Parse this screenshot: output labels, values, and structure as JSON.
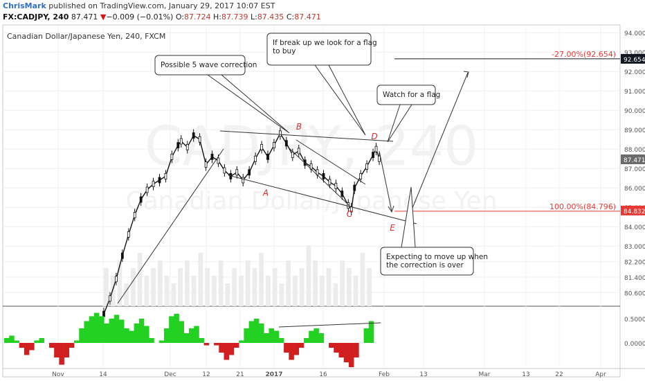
{
  "header": {
    "author": "ChrisMark",
    "published": "published on TradingView.com, January 29, 2017 10:07 EST",
    "symbol": "FX:CADJPY, 240",
    "last": "87.471",
    "change_arrow": "▼",
    "change": "−0.009 (−0.01%)",
    "o_label": "O:",
    "o": "87.724",
    "h_label": "H:",
    "h": "87.739",
    "l_label": "L:",
    "l": "87.435",
    "c_label": "C:",
    "c": "87.471"
  },
  "chart_data": {
    "type": "line",
    "title": "Canadian Dollar/Japanese Yen, 240, FXCM",
    "watermark_symbol": "CADJPY, 240",
    "watermark_name": "Canadian Dollar/Japanese Yen",
    "ylim": [
      79.9,
      94.4
    ],
    "yticks": [
      94,
      93,
      92,
      91,
      90,
      89,
      88,
      87,
      86,
      85,
      84,
      83,
      82.2,
      81.4,
      80.6
    ],
    "ytick_labels": [
      "94.000",
      "93.000",
      "92.000",
      "91.000",
      "90.000",
      "89.000",
      "88.000",
      "87.000",
      "86.000",
      "85.000",
      "84.000",
      "83.000",
      "82.200",
      "81.400",
      "80.600"
    ],
    "price_tags": [
      {
        "label": "92.654",
        "value": 92.654,
        "color": "#131722"
      },
      {
        "label": "87.471",
        "value": 87.471,
        "color": "#6b6b6b"
      },
      {
        "label": "84.832",
        "value": 84.832,
        "color": "#e53935"
      }
    ],
    "xtick_labels": [
      "Nov",
      "14",
      "Dec",
      "12",
      "21",
      "2017",
      "16",
      "Feb",
      "13",
      "Mar",
      "13",
      "22",
      "Apr"
    ],
    "price_series": [
      [
        0,
        79.5
      ],
      [
        4,
        80.3
      ],
      [
        8,
        81.3
      ],
      [
        12,
        82.5
      ],
      [
        16,
        83.6
      ],
      [
        20,
        84.6
      ],
      [
        24,
        85.4
      ],
      [
        28,
        85.9
      ],
      [
        32,
        86.2
      ],
      [
        36,
        86.4
      ],
      [
        40,
        86.6
      ],
      [
        44,
        87.6
      ],
      [
        48,
        88.2
      ],
      [
        50,
        88.4
      ],
      [
        54,
        88.1
      ],
      [
        58,
        88.7
      ],
      [
        62,
        88.5
      ],
      [
        66,
        87.2
      ],
      [
        70,
        87.6
      ],
      [
        74,
        87.4
      ],
      [
        78,
        86.9
      ],
      [
        82,
        86.6
      ],
      [
        86,
        86.8
      ],
      [
        90,
        86.4
      ],
      [
        94,
        86.8
      ],
      [
        98,
        87.5
      ],
      [
        102,
        88.1
      ],
      [
        106,
        87.6
      ],
      [
        110,
        88.2
      ],
      [
        114,
        88.8
      ],
      [
        118,
        88.3
      ],
      [
        122,
        87.7
      ],
      [
        126,
        87.9
      ],
      [
        130,
        87.3
      ],
      [
        134,
        87.1
      ],
      [
        138,
        86.8
      ],
      [
        142,
        86.6
      ],
      [
        146,
        86.3
      ],
      [
        150,
        86.1
      ],
      [
        154,
        85.7
      ],
      [
        158,
        85.1
      ],
      [
        160,
        84.9
      ],
      [
        162,
        86.0
      ],
      [
        166,
        86.6
      ],
      [
        170,
        87.1
      ],
      [
        174,
        87.7
      ],
      [
        176,
        88.0
      ],
      [
        178,
        87.5
      ]
    ],
    "volume": [
      0.5,
      0.4,
      0.6,
      0.3,
      0.5,
      0.7,
      0.4,
      0.5,
      0.6,
      0.4,
      0.3,
      0.5,
      0.6,
      0.4,
      0.7,
      0.5,
      0.4,
      0.6,
      0.3,
      0.5,
      0.4,
      0.6,
      0.5,
      0.7,
      0.4,
      0.5,
      0.3,
      0.6,
      0.4,
      0.5,
      0.8,
      0.6,
      0.4,
      0.5,
      0.3,
      0.6,
      0.5,
      0.4,
      0.7,
      0.5
    ],
    "fib_levels": [
      {
        "label": "-27.00%(92.654)",
        "value": 92.654
      },
      {
        "label": "100.00%(84.796)",
        "value": 84.796
      }
    ],
    "wave_labels": [
      {
        "label": "A",
        "x": 384,
        "y": 85.6
      },
      {
        "label": "B",
        "x": 432,
        "y": 89.0
      },
      {
        "label": "C",
        "x": 505,
        "y": 84.5
      },
      {
        "label": "D",
        "x": 541,
        "y": 88.5
      },
      {
        "label": "E",
        "x": 567,
        "y": 83.8
      }
    ],
    "callouts": [
      {
        "lines": [
          "Possible 5 wave correction"
        ]
      },
      {
        "lines": [
          "If break up we look for a flag",
          "to buy"
        ]
      },
      {
        "lines": [
          "Watch for a flag"
        ]
      },
      {
        "lines": [
          "Expecting to move up when",
          "the correction is over"
        ]
      }
    ],
    "oscillator": {
      "yticks": [
        0.5,
        0.0
      ],
      "ytick_labels": [
        "0.5000",
        "0.0000"
      ],
      "values": [
        0.1,
        0.15,
        0.05,
        -0.1,
        -0.25,
        -0.15,
        0.05,
        0.1,
        0.0,
        -0.1,
        -0.3,
        -0.45,
        -0.3,
        -0.1,
        0.05,
        0.3,
        0.45,
        0.55,
        0.62,
        0.55,
        0.4,
        0.5,
        0.58,
        0.48,
        0.3,
        0.25,
        0.4,
        0.5,
        0.35,
        0.1,
        0.0,
        0.05,
        0.3,
        0.55,
        0.6,
        0.45,
        0.2,
        0.3,
        0.35,
        0.1,
        -0.05,
        0.0,
        -0.05,
        -0.2,
        -0.35,
        -0.25,
        -0.1,
        0.05,
        0.3,
        0.45,
        0.5,
        0.4,
        0.2,
        0.3,
        0.25,
        0.1,
        -0.2,
        -0.35,
        -0.25,
        -0.1,
        0.1,
        0.25,
        0.3,
        0.2,
        0.0,
        -0.1,
        -0.2,
        -0.3,
        -0.4,
        -0.5,
        -0.3,
        0.0,
        0.3,
        0.45
      ]
    },
    "colors": {
      "candle": "#111111",
      "wave_label": "#d32f2f",
      "fib": "#e53935",
      "osc_pos": "#23d123",
      "osc_neg": "#d11f1f"
    },
    "grid": true
  }
}
